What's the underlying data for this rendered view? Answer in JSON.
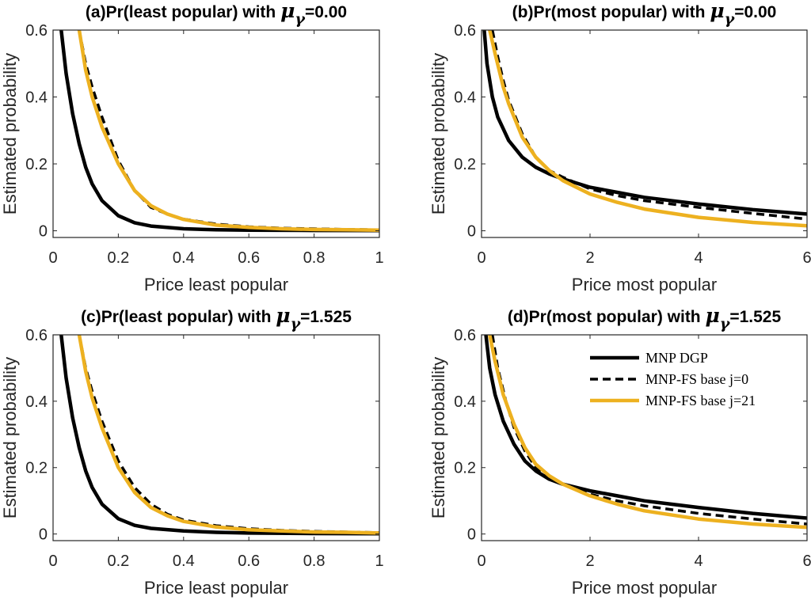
{
  "chart_data": [
    {
      "type": "line",
      "title_prefix": "(a)Pr(least popular) with ",
      "title_symbol": "μ",
      "title_sub": "γ",
      "title_suffix": "=0.00",
      "xlabel": "Price least popular",
      "ylabel": "Estimated probability",
      "xlim": [
        0,
        1
      ],
      "ylim": [
        -0.02,
        0.6
      ],
      "xticks": [
        0,
        0.2,
        0.4,
        0.6,
        0.8,
        1
      ],
      "xtick_labels": [
        "0",
        "0.2",
        "0.4",
        "0.6",
        "0.8",
        "1"
      ],
      "yticks": [
        0,
        0.2,
        0.4,
        0.6
      ],
      "ytick_labels": [
        "0",
        "0.2",
        "0.4",
        "0.6"
      ],
      "series": [
        {
          "name": "MNP DGP",
          "x": [
            0.025,
            0.04,
            0.06,
            0.08,
            0.1,
            0.12,
            0.15,
            0.2,
            0.25,
            0.3,
            0.4,
            0.5,
            0.6,
            0.8,
            1.0
          ],
          "y": [
            0.6,
            0.47,
            0.35,
            0.26,
            0.19,
            0.14,
            0.09,
            0.045,
            0.024,
            0.014,
            0.006,
            0.003,
            0.002,
            0.001,
            0.0005
          ]
        },
        {
          "name": "MNP-FS base j=0",
          "x": [
            0.08,
            0.1,
            0.12,
            0.15,
            0.2,
            0.25,
            0.3,
            0.35,
            0.4,
            0.5,
            0.6,
            0.7,
            0.8,
            0.9,
            1.0
          ],
          "y": [
            0.6,
            0.5,
            0.43,
            0.34,
            0.21,
            0.12,
            0.07,
            0.05,
            0.035,
            0.02,
            0.012,
            0.008,
            0.006,
            0.004,
            0.003
          ]
        },
        {
          "name": "MNP-FS base j=21",
          "x": [
            0.08,
            0.1,
            0.12,
            0.15,
            0.2,
            0.25,
            0.3,
            0.35,
            0.4,
            0.5,
            0.6,
            0.7,
            0.8,
            0.9,
            1.0
          ],
          "y": [
            0.6,
            0.48,
            0.4,
            0.31,
            0.2,
            0.12,
            0.075,
            0.05,
            0.034,
            0.017,
            0.01,
            0.006,
            0.004,
            0.003,
            0.002
          ]
        }
      ]
    },
    {
      "type": "line",
      "title_prefix": "(b)Pr(most popular) with ",
      "title_symbol": "μ",
      "title_sub": "γ",
      "title_suffix": "=0.00",
      "xlabel": "Price most popular",
      "ylabel": "Estimated probability",
      "xlim": [
        0,
        6
      ],
      "ylim": [
        -0.02,
        0.6
      ],
      "xticks": [
        0,
        2,
        4,
        6
      ],
      "xtick_labels": [
        "0",
        "2",
        "4",
        "6"
      ],
      "yticks": [
        0,
        0.2,
        0.4,
        0.6
      ],
      "ytick_labels": [
        "0",
        "0.2",
        "0.4",
        "0.6"
      ],
      "series": [
        {
          "name": "MNP DGP",
          "x": [
            0.05,
            0.1,
            0.2,
            0.3,
            0.5,
            0.75,
            1,
            1.25,
            1.5,
            2,
            2.5,
            3,
            4,
            5,
            6
          ],
          "y": [
            0.6,
            0.5,
            0.4,
            0.34,
            0.27,
            0.22,
            0.19,
            0.17,
            0.155,
            0.13,
            0.115,
            0.1,
            0.08,
            0.063,
            0.05
          ]
        },
        {
          "name": "MNP-FS base j=0",
          "x": [
            0.2,
            0.3,
            0.4,
            0.5,
            0.75,
            1,
            1.25,
            1.5,
            2,
            2.5,
            3,
            4,
            5,
            6
          ],
          "y": [
            0.6,
            0.52,
            0.45,
            0.39,
            0.29,
            0.22,
            0.18,
            0.16,
            0.125,
            0.105,
            0.09,
            0.07,
            0.052,
            0.035
          ]
        },
        {
          "name": "MNP-FS base j=21",
          "x": [
            0.15,
            0.25,
            0.4,
            0.5,
            0.75,
            1,
            1.25,
            1.5,
            2,
            2.5,
            3,
            4,
            5,
            6
          ],
          "y": [
            0.6,
            0.53,
            0.43,
            0.38,
            0.28,
            0.22,
            0.18,
            0.15,
            0.11,
            0.085,
            0.065,
            0.04,
            0.025,
            0.015
          ]
        }
      ]
    },
    {
      "type": "line",
      "title_prefix": "(c)Pr(least popular) with ",
      "title_symbol": "μ",
      "title_sub": "γ",
      "title_suffix": "=1.525",
      "xlabel": "Price least popular",
      "ylabel": "Estimated probability",
      "xlim": [
        0,
        1
      ],
      "ylim": [
        -0.02,
        0.6
      ],
      "xticks": [
        0,
        0.2,
        0.4,
        0.6,
        0.8,
        1
      ],
      "xtick_labels": [
        "0",
        "0.2",
        "0.4",
        "0.6",
        "0.8",
        "1"
      ],
      "yticks": [
        0,
        0.2,
        0.4,
        0.6
      ],
      "ytick_labels": [
        "0",
        "0.2",
        "0.4",
        "0.6"
      ],
      "series": [
        {
          "name": "MNP DGP",
          "x": [
            0.025,
            0.04,
            0.06,
            0.08,
            0.1,
            0.12,
            0.15,
            0.2,
            0.25,
            0.3,
            0.4,
            0.5,
            0.6,
            0.8,
            1.0
          ],
          "y": [
            0.6,
            0.47,
            0.35,
            0.26,
            0.19,
            0.14,
            0.09,
            0.046,
            0.026,
            0.017,
            0.009,
            0.005,
            0.003,
            0.0015,
            0.001
          ]
        },
        {
          "name": "MNP-FS base j=0",
          "x": [
            0.08,
            0.1,
            0.12,
            0.15,
            0.2,
            0.25,
            0.3,
            0.35,
            0.4,
            0.5,
            0.6,
            0.7,
            0.8,
            0.9,
            1.0
          ],
          "y": [
            0.6,
            0.5,
            0.43,
            0.34,
            0.22,
            0.14,
            0.09,
            0.06,
            0.042,
            0.025,
            0.016,
            0.011,
            0.008,
            0.006,
            0.004
          ]
        },
        {
          "name": "MNP-FS base j=21",
          "x": [
            0.08,
            0.1,
            0.12,
            0.15,
            0.2,
            0.25,
            0.3,
            0.35,
            0.4,
            0.5,
            0.6,
            0.7,
            0.8,
            0.9,
            1.0
          ],
          "y": [
            0.6,
            0.49,
            0.41,
            0.32,
            0.2,
            0.125,
            0.08,
            0.055,
            0.038,
            0.021,
            0.013,
            0.009,
            0.006,
            0.005,
            0.003
          ]
        }
      ]
    },
    {
      "type": "line",
      "title_prefix": "(d)Pr(most popular) with ",
      "title_symbol": "μ",
      "title_sub": "γ",
      "title_suffix": "=1.525",
      "xlabel": "Price most popular",
      "ylabel": "Estimated probability",
      "xlim": [
        0,
        6
      ],
      "ylim": [
        -0.02,
        0.6
      ],
      "xticks": [
        0,
        2,
        4,
        6
      ],
      "xtick_labels": [
        "0",
        "2",
        "4",
        "6"
      ],
      "yticks": [
        0,
        0.2,
        0.4,
        0.6
      ],
      "ytick_labels": [
        "0",
        "0.2",
        "0.4",
        "0.6"
      ],
      "legend": "top-right",
      "series": [
        {
          "name": "MNP DGP",
          "x": [
            0.08,
            0.15,
            0.25,
            0.4,
            0.6,
            0.8,
            1,
            1.25,
            1.5,
            2,
            2.5,
            3,
            4,
            5,
            6
          ],
          "y": [
            0.6,
            0.5,
            0.42,
            0.34,
            0.27,
            0.22,
            0.19,
            0.165,
            0.15,
            0.13,
            0.115,
            0.1,
            0.08,
            0.062,
            0.048
          ]
        },
        {
          "name": "MNP-FS base j=0",
          "x": [
            0.2,
            0.3,
            0.45,
            0.6,
            0.8,
            1,
            1.25,
            1.5,
            2,
            2.5,
            3,
            4,
            5,
            6
          ],
          "y": [
            0.6,
            0.5,
            0.4,
            0.32,
            0.25,
            0.2,
            0.17,
            0.15,
            0.12,
            0.1,
            0.085,
            0.062,
            0.045,
            0.03
          ]
        },
        {
          "name": "MNP-FS base j=21",
          "x": [
            0.15,
            0.25,
            0.4,
            0.6,
            0.8,
            1,
            1.25,
            1.5,
            2,
            2.5,
            3,
            4,
            5,
            6
          ],
          "y": [
            0.6,
            0.52,
            0.42,
            0.33,
            0.26,
            0.21,
            0.175,
            0.15,
            0.115,
            0.09,
            0.07,
            0.045,
            0.03,
            0.02
          ]
        }
      ]
    }
  ],
  "series_styles": [
    {
      "color": "#000000",
      "dash": "none",
      "width": 4.5
    },
    {
      "color": "#000000",
      "dash": "10,6",
      "width": 3.5
    },
    {
      "color": "#EDB120",
      "dash": "none",
      "width": 4.5
    }
  ]
}
